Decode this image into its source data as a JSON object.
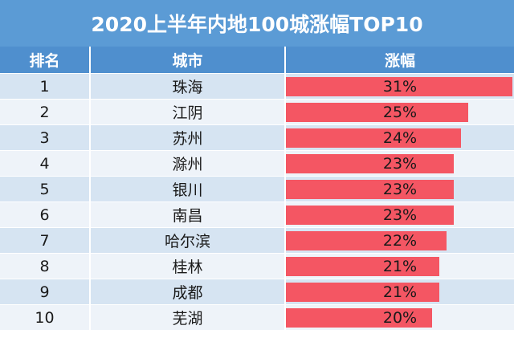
{
  "title": "2020上半年内地100城涨幅TOP10",
  "headers": {
    "rank": "排名",
    "city": "城市",
    "growth": "涨幅"
  },
  "colors": {
    "title_bg": "#5b9bd5",
    "header_bg": "#4f8fce",
    "row_even": "#d6e4f2",
    "row_odd": "#eef3f9",
    "bar": "#f45663"
  },
  "chart_data": {
    "type": "table",
    "title": "2020上半年内地100城涨幅TOP10",
    "columns": [
      "排名",
      "城市",
      "涨幅"
    ],
    "rows": [
      {
        "rank": "1",
        "city": "珠海",
        "growth": 31,
        "label": "31%"
      },
      {
        "rank": "2",
        "city": "江阴",
        "growth": 25,
        "label": "25%"
      },
      {
        "rank": "3",
        "city": "苏州",
        "growth": 24,
        "label": "24%"
      },
      {
        "rank": "4",
        "city": "滁州",
        "growth": 23,
        "label": "23%"
      },
      {
        "rank": "5",
        "city": "银川",
        "growth": 23,
        "label": "23%"
      },
      {
        "rank": "6",
        "city": "南昌",
        "growth": 23,
        "label": "23%"
      },
      {
        "rank": "7",
        "city": "哈尔滨",
        "growth": 22,
        "label": "22%"
      },
      {
        "rank": "8",
        "city": "桂林",
        "growth": 21,
        "label": "21%"
      },
      {
        "rank": "9",
        "city": "成都",
        "growth": 21,
        "label": "21%"
      },
      {
        "rank": "10",
        "city": "芜湖",
        "growth": 20,
        "label": "20%"
      }
    ]
  }
}
